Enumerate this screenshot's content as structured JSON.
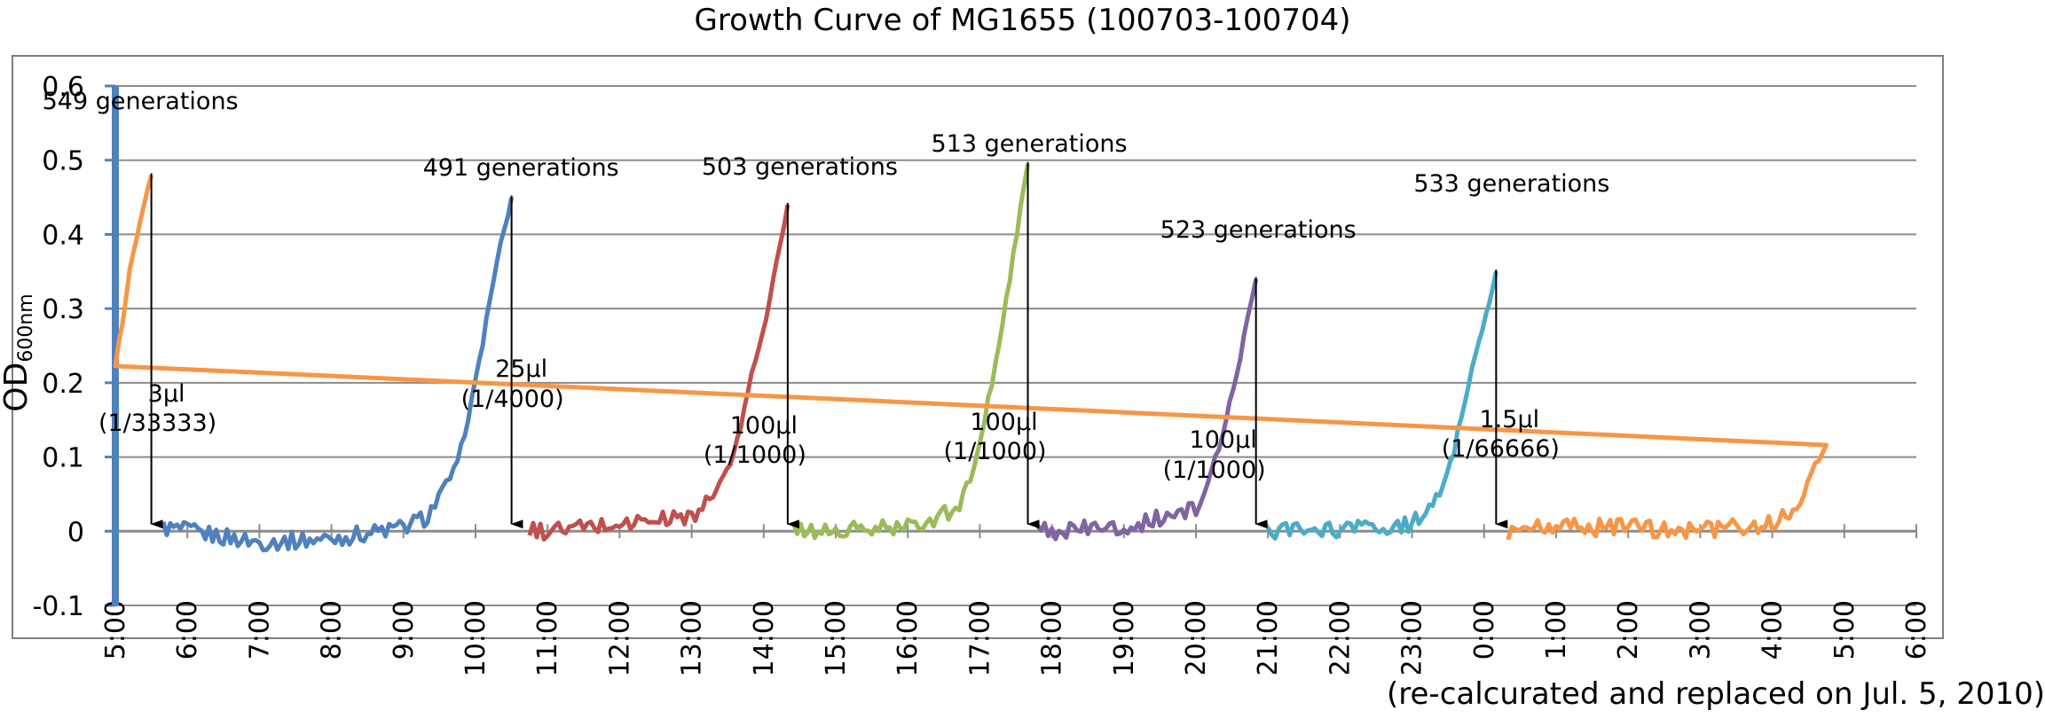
{
  "chart_data": {
    "type": "line",
    "title": "Growth Curve of MG1655 (100703-100704)",
    "ylabel_main": "OD",
    "ylabel_sub": "600nm",
    "ylim": [
      -0.1,
      0.6
    ],
    "yticks": [
      -0.1,
      0,
      0.1,
      0.2,
      0.3,
      0.4,
      0.5,
      0.6
    ],
    "ytick_labels": [
      "-0.1",
      "0",
      "0.1",
      "0.2",
      "0.3",
      "0.4",
      "0.5",
      "0.6"
    ],
    "xlim": [
      "5:00",
      "6:00 (next day)"
    ],
    "xtick_labels": [
      "5:00",
      "6:00",
      "7:00",
      "8:00",
      "9:00",
      "10:00",
      "11:00",
      "12:00",
      "13:00",
      "14:00",
      "15:00",
      "16:00",
      "17:00",
      "18:00",
      "19:00",
      "20:00",
      "21:00",
      "22:00",
      "23:00",
      "0:00",
      "1:00",
      "2:00",
      "3:00",
      "4:00",
      "5:00",
      "6:00"
    ],
    "grid": "horizontal",
    "series": [
      {
        "color": "#4F81BD",
        "x": [
          "5:40",
          "6:00",
          "7:00",
          "8:00",
          "9:00",
          "9:20",
          "9:45",
          "10:00",
          "10:15",
          "10:30"
        ],
        "values": [
          0.005,
          0.0,
          -0.015,
          -0.01,
          0.005,
          0.02,
          0.09,
          0.2,
          0.34,
          0.45
        ]
      },
      {
        "color": "#C0504D",
        "x": [
          "10:45",
          "11:00",
          "12:00",
          "13:00",
          "13:15",
          "13:35",
          "13:50",
          "14:05",
          "14:20"
        ],
        "values": [
          0.0,
          0.0,
          0.01,
          0.02,
          0.04,
          0.1,
          0.21,
          0.31,
          0.44
        ]
      },
      {
        "color": "#9BBB59",
        "x": [
          "14:25",
          "15:00",
          "16:00",
          "16:40",
          "16:55",
          "17:10",
          "17:25",
          "17:40"
        ],
        "values": [
          0.0,
          0.0,
          0.005,
          0.03,
          0.08,
          0.2,
          0.34,
          0.495
        ]
      },
      {
        "color": "#8064A2",
        "x": [
          "17:45",
          "18:00",
          "19:00",
          "20:00",
          "20:10",
          "20:25",
          "20:40",
          "20:50"
        ],
        "values": [
          0.0,
          0.0,
          0.005,
          0.03,
          0.06,
          0.15,
          0.26,
          0.34
        ]
      },
      {
        "color": "#4BACC6",
        "x": [
          "21:00",
          "22:00",
          "23:00",
          "23:20",
          "23:35",
          "23:50",
          "0:10"
        ],
        "values": [
          0.0,
          0.0,
          0.01,
          0.04,
          0.11,
          0.22,
          0.35
        ]
      },
      {
        "color": "#F79646",
        "x": [
          "0:20",
          "1:00",
          "2:00",
          "3:00",
          "4:00",
          "4:20",
          "4:45",
          "5:00",
          "5:15",
          "5:30"
        ],
        "values": [
          0.0,
          0.005,
          0.005,
          0.0,
          0.01,
          0.03,
          0.12,
          0.22,
          0.38,
          0.48
        ]
      }
    ],
    "annotations": {
      "generations": [
        {
          "text": "491 generations",
          "x": "10:30"
        },
        {
          "text": "503 generations",
          "x": "14:20"
        },
        {
          "text": "513 generations",
          "x": "17:40"
        },
        {
          "text": "523 generations",
          "x": "20:50"
        },
        {
          "text": "533 generations",
          "x": "0:10"
        },
        {
          "text": "549 generations",
          "x": "5:30"
        }
      ],
      "transfers": [
        {
          "volume": "25μl",
          "dilution": "(1/4000)",
          "x": "10:30"
        },
        {
          "volume": "100μl",
          "dilution": "(1/1000)",
          "x": "14:20"
        },
        {
          "volume": "100μl",
          "dilution": "(1/1000)",
          "x": "17:40"
        },
        {
          "volume": "100μl",
          "dilution": "(1/1000)",
          "x": "20:50"
        },
        {
          "volume": "1.5μl",
          "dilution": "(1/66666)",
          "x": "0:10"
        },
        {
          "volume": "3μl",
          "dilution": "(1/33333)",
          "x": "5:30"
        }
      ]
    }
  },
  "footnote": "(re-calcurated and replaced on Jul. 5, 2010)"
}
